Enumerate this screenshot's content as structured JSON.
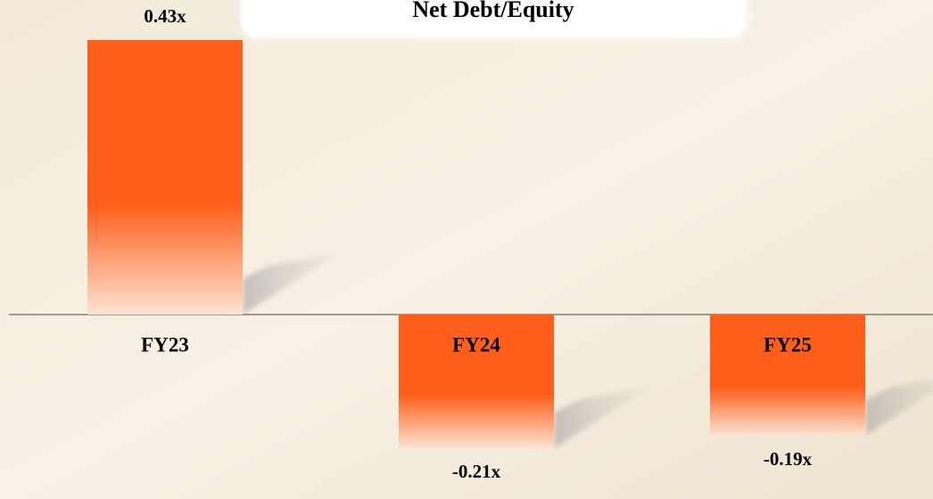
{
  "chart_data": {
    "type": "bar",
    "title": "Net Debt/Equity",
    "categories": [
      "FY23",
      "FY24",
      "FY25"
    ],
    "values": [
      0.43,
      -0.21,
      -0.19
    ],
    "value_labels": [
      "0.43x",
      "-0.21x",
      "-0.19x"
    ],
    "color": "#ff5f1a"
  }
}
